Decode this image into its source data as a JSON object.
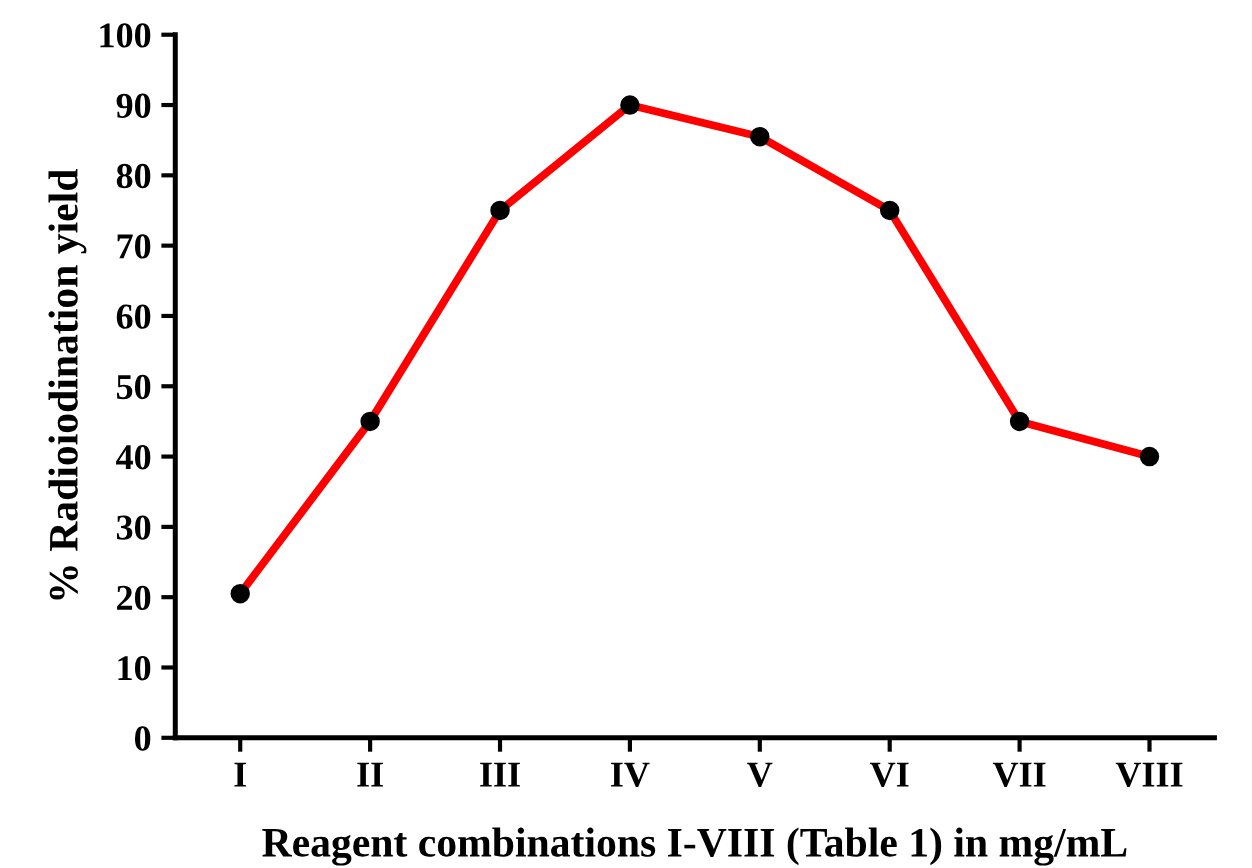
{
  "chart_data": {
    "type": "line",
    "xlabel": "Reagent combinations I-VIII (Table 1) in mg/mL",
    "ylabel": "% Radioiodination yield",
    "categories": [
      "I",
      "II",
      "III",
      "IV",
      "V",
      "VI",
      "VII",
      "VIII"
    ],
    "series": [
      {
        "color": "#ff0000",
        "values": [
          20.5,
          45,
          75,
          90,
          85.5,
          75,
          45,
          40
        ]
      }
    ],
    "ylim": [
      0,
      100
    ],
    "yticks": [
      0,
      10,
      20,
      30,
      40,
      50,
      60,
      70,
      80,
      90,
      100
    ],
    "marker": "circle",
    "line_style": "solid",
    "grid": false
  }
}
